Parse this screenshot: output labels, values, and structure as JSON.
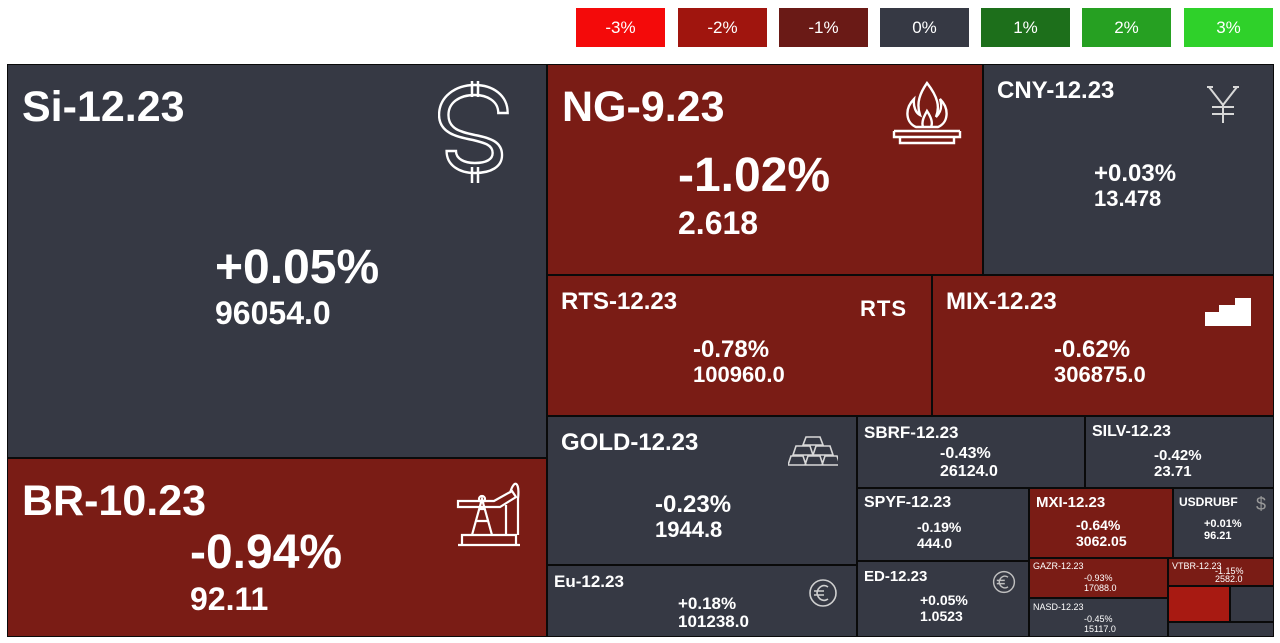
{
  "legend": [
    {
      "label": "-3%",
      "color": "#f40a0a"
    },
    {
      "label": "-2%",
      "color": "#a0150e"
    },
    {
      "label": "-1%",
      "color": "#6a1a16"
    },
    {
      "label": "0%",
      "color": "#363944"
    },
    {
      "label": "1%",
      "color": "#1d6f1b"
    },
    {
      "label": "2%",
      "color": "#26a022"
    },
    {
      "label": "3%",
      "color": "#2fd12a"
    }
  ],
  "colors": {
    "neutral": "#363944",
    "negative": "#7a1c15",
    "negative_bright": "#a81a12",
    "border": "#0a0a0a"
  },
  "tiles": [
    {
      "ticker": "Si-12.23",
      "change": "+0.05%",
      "price": "96054.0",
      "icon": "dollar-icon",
      "tone": "neutral"
    },
    {
      "ticker": "BR-10.23",
      "change": "-0.94%",
      "price": "92.11",
      "icon": "oil-pump-icon",
      "tone": "negative"
    },
    {
      "ticker": "NG-9.23",
      "change": "-1.02%",
      "price": "2.618",
      "icon": "gas-flame-icon",
      "tone": "negative"
    },
    {
      "ticker": "CNY-12.23",
      "change": "+0.03%",
      "price": "13.478",
      "icon": "yuan-icon",
      "tone": "neutral"
    },
    {
      "ticker": "RTS-12.23",
      "change": "-0.78%",
      "price": "100960.0",
      "icon_text": "RTS",
      "tone": "negative"
    },
    {
      "ticker": "MIX-12.23",
      "change": "-0.62%",
      "price": "306875.0",
      "icon": "bars-icon",
      "tone": "negative"
    },
    {
      "ticker": "GOLD-12.23",
      "change": "-0.23%",
      "price": "1944.8",
      "icon": "gold-bars-icon",
      "tone": "neutral"
    },
    {
      "ticker": "Eu-12.23",
      "change": "+0.18%",
      "price": "101238.0",
      "icon": "euro-icon",
      "tone": "neutral"
    },
    {
      "ticker": "SBRF-12.23",
      "change": "-0.43%",
      "price": "26124.0",
      "tone": "neutral"
    },
    {
      "ticker": "SILV-12.23",
      "change": "-0.42%",
      "price": "23.71",
      "tone": "neutral"
    },
    {
      "ticker": "SPYF-12.23",
      "change": "-0.19%",
      "price": "444.0",
      "tone": "neutral"
    },
    {
      "ticker": "MXI-12.23",
      "change": "-0.64%",
      "price": "3062.05",
      "tone": "negative"
    },
    {
      "ticker": "USDRUBF",
      "change": "+0.01%",
      "price": "96.21",
      "icon": "dollar-icon",
      "tone": "neutral"
    },
    {
      "ticker": "ED-12.23",
      "change": "+0.05%",
      "price": "1.0523",
      "icon": "euro-icon",
      "tone": "neutral"
    },
    {
      "ticker": "GAZR-12.23",
      "change": "-0.93%",
      "price": "17088.0",
      "tone": "negative"
    },
    {
      "ticker": "VTBR-12.23",
      "change": "-1.15%",
      "price": "2582.0",
      "tone": "negative"
    },
    {
      "ticker": "NASD-12.23",
      "change": "-0.45%",
      "price": "15117.0",
      "tone": "neutral"
    },
    {
      "ticker": "",
      "change": "",
      "price": "",
      "tone": "negative_bright"
    },
    {
      "ticker": "",
      "change": "",
      "price": "",
      "tone": "neutral"
    },
    {
      "ticker": "",
      "change": "",
      "price": "",
      "tone": "neutral"
    }
  ]
}
